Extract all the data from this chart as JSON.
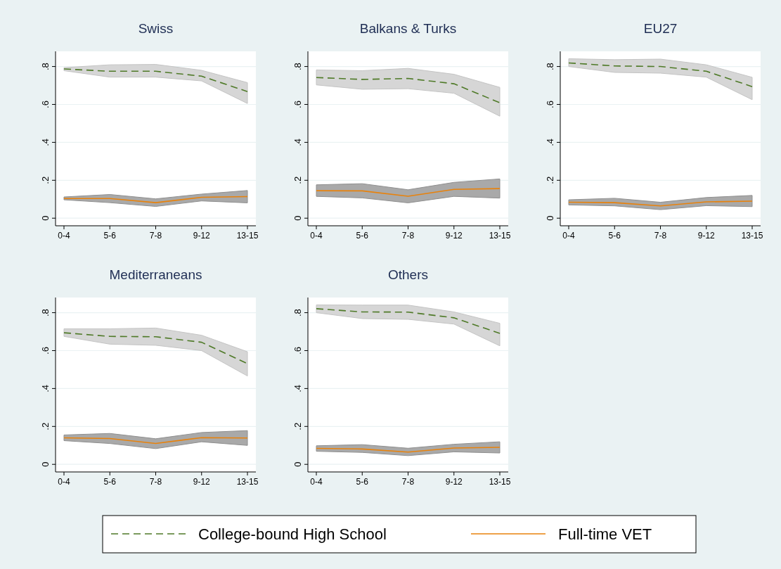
{
  "chart_data": [
    {
      "type": "line",
      "title": "Swiss",
      "categories": [
        "0-4",
        "5-6",
        "7-8",
        "9-12",
        "13-15"
      ],
      "ylim": [
        -0.04,
        0.88
      ],
      "yticks": [
        {
          "value": 0,
          "label": "0"
        },
        {
          "value": 0.2,
          "label": ".2"
        },
        {
          "value": 0.4,
          "label": ".4"
        },
        {
          "value": 0.6,
          "label": ".6"
        },
        {
          "value": 0.8,
          "label": ".8"
        }
      ],
      "grid": "y",
      "legend": "bottom",
      "series": [
        {
          "name": "College-bound High School",
          "color": "#4f7a28",
          "line_style": "dashed",
          "values": [
            0.787,
            0.775,
            0.775,
            0.749,
            0.668
          ],
          "lower": [
            0.778,
            0.744,
            0.744,
            0.724,
            0.605
          ],
          "upper": [
            0.794,
            0.809,
            0.811,
            0.78,
            0.715
          ]
        },
        {
          "name": "Full-time VET",
          "color": "#e8820c",
          "line_style": "solid",
          "values": [
            0.104,
            0.104,
            0.082,
            0.11,
            0.114
          ],
          "lower": [
            0.097,
            0.082,
            0.062,
            0.091,
            0.081
          ],
          "upper": [
            0.112,
            0.125,
            0.102,
            0.127,
            0.146
          ]
        }
      ]
    },
    {
      "type": "line",
      "title": "Balkans & Turks",
      "categories": [
        "0-4",
        "5-6",
        "7-8",
        "9-12",
        "13-15"
      ],
      "ylim": [
        -0.04,
        0.88
      ],
      "yticks": [
        {
          "value": 0,
          "label": "0"
        },
        {
          "value": 0.2,
          "label": ".2"
        },
        {
          "value": 0.4,
          "label": ".4"
        },
        {
          "value": 0.6,
          "label": ".6"
        },
        {
          "value": 0.8,
          "label": ".8"
        }
      ],
      "grid": "y",
      "series": [
        {
          "color": "#4f7a28",
          "line_style": "dashed",
          "values": [
            0.742,
            0.732,
            0.737,
            0.709,
            0.609
          ],
          "lower": [
            0.703,
            0.68,
            0.683,
            0.659,
            0.538
          ],
          "upper": [
            0.782,
            0.778,
            0.79,
            0.759,
            0.69
          ]
        },
        {
          "color": "#e8820c",
          "line_style": "solid",
          "values": [
            0.145,
            0.144,
            0.116,
            0.152,
            0.156
          ],
          "lower": [
            0.115,
            0.107,
            0.081,
            0.115,
            0.106
          ],
          "upper": [
            0.176,
            0.182,
            0.15,
            0.189,
            0.207
          ]
        }
      ]
    },
    {
      "type": "line",
      "title": "EU27",
      "categories": [
        "0-4",
        "5-6",
        "7-8",
        "9-12",
        "13-15"
      ],
      "ylim": [
        -0.04,
        0.88
      ],
      "yticks": [
        {
          "value": 0,
          "label": "0"
        },
        {
          "value": 0.2,
          "label": ".2"
        },
        {
          "value": 0.4,
          "label": ".4"
        },
        {
          "value": 0.6,
          "label": ".6"
        },
        {
          "value": 0.8,
          "label": ".8"
        }
      ],
      "grid": "y",
      "series": [
        {
          "color": "#4f7a28",
          "line_style": "dashed",
          "values": [
            0.819,
            0.803,
            0.8,
            0.775,
            0.694
          ],
          "lower": [
            0.8,
            0.769,
            0.765,
            0.744,
            0.625
          ],
          "upper": [
            0.841,
            0.836,
            0.839,
            0.809,
            0.743
          ]
        },
        {
          "color": "#e8820c",
          "line_style": "solid",
          "values": [
            0.084,
            0.082,
            0.065,
            0.086,
            0.09
          ],
          "lower": [
            0.07,
            0.065,
            0.045,
            0.066,
            0.061
          ],
          "upper": [
            0.097,
            0.105,
            0.084,
            0.109,
            0.12
          ]
        }
      ]
    },
    {
      "type": "line",
      "title": "Mediterraneans",
      "categories": [
        "0-4",
        "5-6",
        "7-8",
        "9-12",
        "13-15"
      ],
      "ylim": [
        -0.04,
        0.88
      ],
      "yticks": [
        {
          "value": 0,
          "label": "0"
        },
        {
          "value": 0.2,
          "label": ".2"
        },
        {
          "value": 0.4,
          "label": ".4"
        },
        {
          "value": 0.6,
          "label": ".6"
        },
        {
          "value": 0.8,
          "label": ".8"
        }
      ],
      "grid": "y",
      "series": [
        {
          "color": "#4f7a28",
          "line_style": "dashed",
          "values": [
            0.694,
            0.675,
            0.673,
            0.644,
            0.531
          ],
          "lower": [
            0.675,
            0.634,
            0.628,
            0.6,
            0.466
          ],
          "upper": [
            0.715,
            0.715,
            0.719,
            0.681,
            0.594
          ]
        },
        {
          "color": "#e8820c",
          "line_style": "solid",
          "values": [
            0.14,
            0.136,
            0.11,
            0.141,
            0.139
          ],
          "lower": [
            0.125,
            0.11,
            0.083,
            0.119,
            0.1
          ],
          "upper": [
            0.155,
            0.163,
            0.135,
            0.168,
            0.178
          ]
        }
      ]
    },
    {
      "type": "line",
      "title": "Others",
      "categories": [
        "0-4",
        "5-6",
        "7-8",
        "9-12",
        "13-15"
      ],
      "ylim": [
        -0.04,
        0.88
      ],
      "yticks": [
        {
          "value": 0,
          "label": "0"
        },
        {
          "value": 0.2,
          "label": ".2"
        },
        {
          "value": 0.4,
          "label": ".4"
        },
        {
          "value": 0.6,
          "label": ".6"
        },
        {
          "value": 0.8,
          "label": ".8"
        }
      ],
      "grid": "y",
      "series": [
        {
          "color": "#4f7a28",
          "line_style": "dashed",
          "values": [
            0.821,
            0.804,
            0.803,
            0.773,
            0.691
          ],
          "lower": [
            0.8,
            0.769,
            0.765,
            0.74,
            0.625
          ],
          "upper": [
            0.841,
            0.84,
            0.84,
            0.804,
            0.744
          ]
        },
        {
          "color": "#e8820c",
          "line_style": "solid",
          "values": [
            0.084,
            0.081,
            0.065,
            0.086,
            0.09
          ],
          "lower": [
            0.069,
            0.063,
            0.046,
            0.066,
            0.06
          ],
          "upper": [
            0.098,
            0.104,
            0.085,
            0.106,
            0.119
          ]
        }
      ]
    }
  ]
}
